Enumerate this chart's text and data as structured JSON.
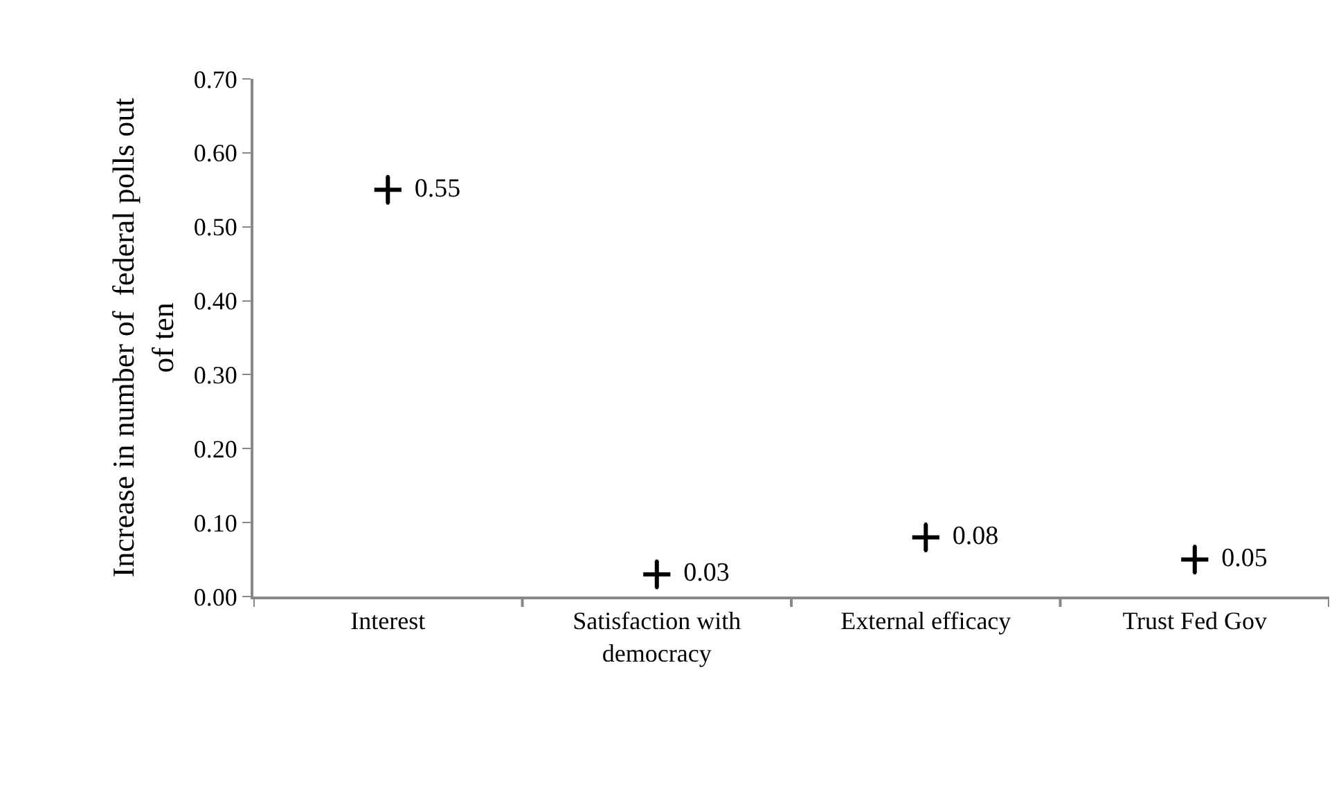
{
  "chart_data": {
    "type": "scatter",
    "ylabel": "Increase in number of  federal polls out of ten",
    "categories": [
      "Interest",
      "Satisfaction with democracy",
      "External efficacy",
      "Trust Fed Gov"
    ],
    "values": [
      0.55,
      0.03,
      0.08,
      0.05
    ],
    "errors": [
      0.02,
      0.02,
      0.02,
      0.02
    ],
    "color": "#000000",
    "marker": "cross",
    "data_labels": true,
    "ylim": [
      0,
      0.7
    ],
    "yticks": [
      {
        "value": 0,
        "label": "0.00"
      },
      {
        "value": 0.1,
        "label": "0.10"
      },
      {
        "value": 0.2,
        "label": "0.20"
      },
      {
        "value": 0.3,
        "label": "0.30"
      },
      {
        "value": 0.4,
        "label": "0.40"
      },
      {
        "value": 0.5,
        "label": "0.50"
      },
      {
        "value": 0.6,
        "label": "0.60"
      },
      {
        "value": 0.7,
        "label": "0.70"
      }
    ]
  }
}
